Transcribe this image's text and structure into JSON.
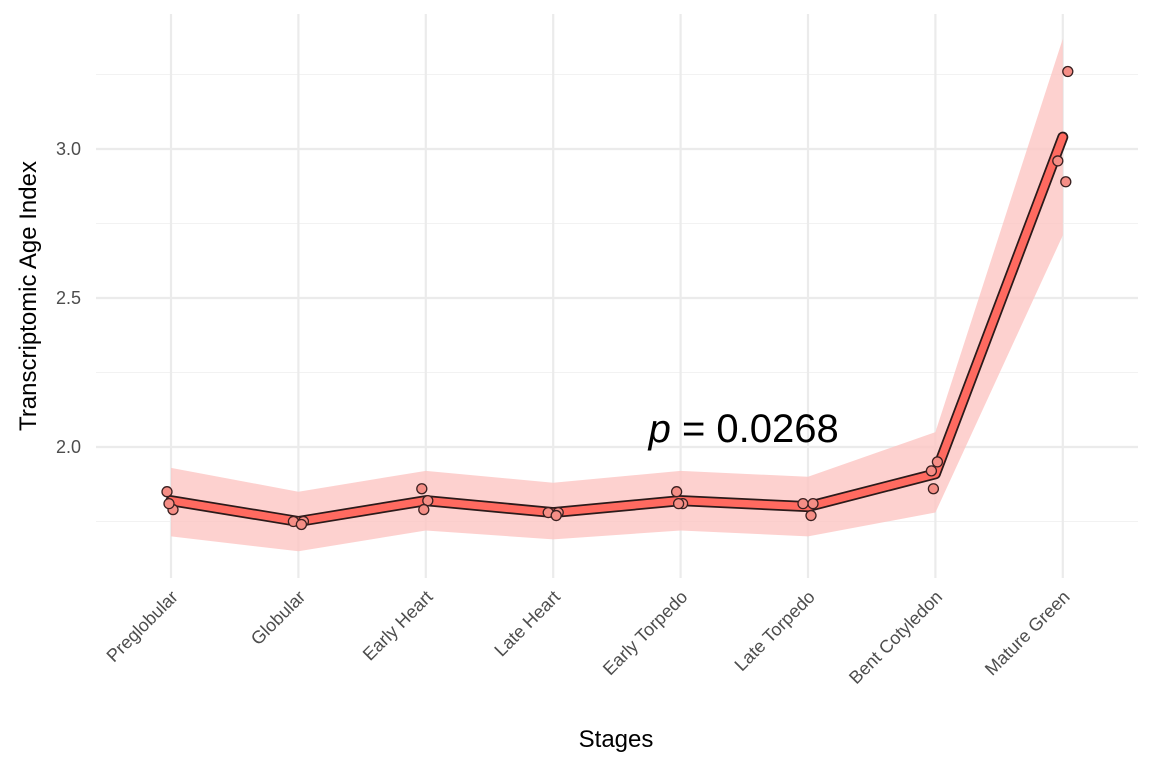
{
  "chart_data": {
    "type": "line",
    "title": "",
    "xlabel": "Stages",
    "ylabel": "Transcriptomic Age Index",
    "categories": [
      "Preglobular",
      "Globular",
      "Early Heart",
      "Late Heart",
      "Early Torpedo",
      "Late Torpedo",
      "Bent Cotyledon",
      "Mature Green"
    ],
    "ylim": [
      1.58,
      3.42
    ],
    "yticks": [
      "2.0",
      "2.5",
      "3.0"
    ],
    "ytick_values": [
      2.0,
      2.5,
      3.0
    ],
    "y_minor_ticks": [
      1.75,
      2.25,
      2.75,
      3.25
    ],
    "grid": true,
    "legend": "none",
    "series": [
      {
        "name": "",
        "values": [
          1.82,
          1.75,
          1.82,
          1.78,
          1.82,
          1.8,
          1.91,
          3.04
        ]
      }
    ],
    "ribbon": {
      "lower": [
        1.7,
        1.65,
        1.72,
        1.69,
        1.72,
        1.7,
        1.78,
        2.71
      ],
      "upper": [
        1.93,
        1.85,
        1.92,
        1.88,
        1.92,
        1.9,
        2.05,
        3.37
      ]
    },
    "points": [
      {
        "stage": 0,
        "y": [
          1.85,
          1.79,
          1.81
        ]
      },
      {
        "stage": 1,
        "y": [
          1.75,
          1.75,
          1.74
        ]
      },
      {
        "stage": 2,
        "y": [
          1.86,
          1.82,
          1.79
        ]
      },
      {
        "stage": 3,
        "y": [
          1.78,
          1.78,
          1.77
        ]
      },
      {
        "stage": 4,
        "y": [
          1.85,
          1.81,
          1.81
        ]
      },
      {
        "stage": 5,
        "y": [
          1.81,
          1.81,
          1.77
        ]
      },
      {
        "stage": 6,
        "y": [
          1.92,
          1.95,
          1.86
        ]
      },
      {
        "stage": 7,
        "y": [
          3.26,
          2.96,
          2.89
        ]
      }
    ],
    "annotation": {
      "italic_part": "p",
      "rest": " = 0.0268",
      "x_stage": 4,
      "y": 2.06
    },
    "colors": {
      "line": "#ff6a60",
      "line_outline": "#2b1a1a",
      "ribbon": "#fcc4c2",
      "point_fill": "#f58e86",
      "point_stroke": "#3a2020"
    }
  }
}
